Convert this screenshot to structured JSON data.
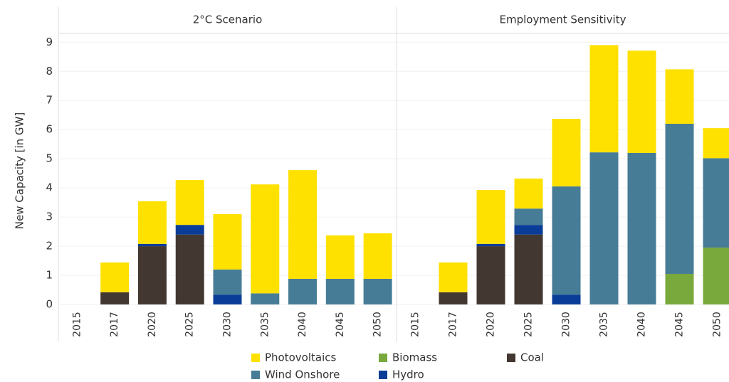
{
  "chart_data": {
    "type": "bar",
    "stacked": true,
    "y_label": "New Capacity [in GW]",
    "ylim": [
      0,
      9.3
    ],
    "yticks": [
      0,
      1,
      2,
      3,
      4,
      5,
      6,
      7,
      8,
      9
    ],
    "grid": true,
    "categories": [
      "2015",
      "2017",
      "2020",
      "2025",
      "2030",
      "2035",
      "2040",
      "2045",
      "2050"
    ],
    "series": [
      {
        "name": "Coal",
        "color": "#433731"
      },
      {
        "name": "Hydro",
        "color": "#0a3d98"
      },
      {
        "name": "Biomass",
        "color": "#79a83c"
      },
      {
        "name": "Wind Onshore",
        "color": "#467c96"
      },
      {
        "name": "Photovoltaics",
        "color": "#ffe100"
      }
    ],
    "panels": [
      {
        "title": "2°C Scenario",
        "values": [
          [
            0,
            0.42,
            2.0,
            2.4,
            0,
            0,
            0,
            0,
            0
          ],
          [
            0,
            0,
            0.08,
            0.33,
            0.33,
            0,
            0,
            0,
            0
          ],
          [
            0,
            0,
            0,
            0,
            0,
            0,
            0,
            0,
            0
          ],
          [
            0,
            0,
            0,
            0,
            0.87,
            0.38,
            0.88,
            0.88,
            0.88
          ],
          [
            0,
            1.02,
            1.46,
            1.54,
            1.9,
            3.74,
            3.73,
            1.49,
            1.56
          ]
        ]
      },
      {
        "title": "Employment Sensitivity",
        "values": [
          [
            0,
            0.42,
            2.0,
            2.4,
            0,
            0,
            0,
            0,
            0
          ],
          [
            0,
            0,
            0.08,
            0.33,
            0.33,
            0,
            0,
            0,
            0
          ],
          [
            0,
            0,
            0,
            0,
            0,
            0,
            0,
            1.05,
            1.95
          ],
          [
            0,
            0,
            0,
            0.56,
            3.72,
            5.22,
            5.2,
            5.15,
            3.07
          ],
          [
            0,
            1.02,
            1.85,
            1.03,
            2.32,
            3.68,
            3.51,
            1.87,
            1.03
          ]
        ]
      }
    ]
  }
}
